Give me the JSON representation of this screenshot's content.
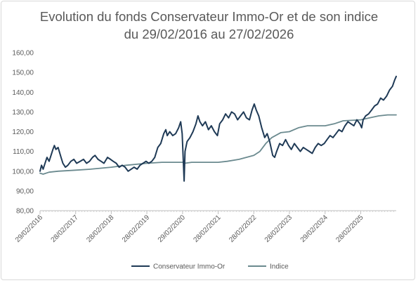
{
  "chart_data": {
    "type": "line",
    "title_line1": "Evolution du fonds Conservateur Immo-Or et de son indice",
    "title_line2": "du 29/02/2016 au 27/02/2026",
    "xlabel": "",
    "ylabel": "",
    "ylim": [
      80,
      160
    ],
    "y_ticks": [
      "80,00",
      "90,00",
      "100,00",
      "110,00",
      "120,00",
      "130,00",
      "140,00",
      "150,00",
      "160,00"
    ],
    "x_ticks": [
      {
        "date": "2016-02-29",
        "label": "29/02/2016"
      },
      {
        "date": "2017-02-28",
        "label": "28/02/2017"
      },
      {
        "date": "2018-02-28",
        "label": "28/02/2018"
      },
      {
        "date": "2019-02-28",
        "label": "28/02/2019"
      },
      {
        "date": "2020-02-29",
        "label": "29/02/2020"
      },
      {
        "date": "2021-02-28",
        "label": "28/02/2021"
      },
      {
        "date": "2022-02-28",
        "label": "28/02/2022"
      },
      {
        "date": "2023-02-28",
        "label": "28/02/2023"
      },
      {
        "date": "2024-02-29",
        "label": "29/02/2024"
      },
      {
        "date": "2025-02-28",
        "label": "28/02/2025"
      }
    ],
    "x_range": [
      "2016-02-29",
      "2026-02-27"
    ],
    "grid": false,
    "legend_position": "bottom",
    "series": [
      {
        "name": "Conservateur Immo-Or",
        "color": "#1f3a56",
        "points": [
          [
            "2016-02-29",
            100
          ],
          [
            "2016-03-15",
            103
          ],
          [
            "2016-04-01",
            101
          ],
          [
            "2016-04-20",
            104
          ],
          [
            "2016-05-10",
            107
          ],
          [
            "2016-06-01",
            105
          ],
          [
            "2016-06-20",
            108
          ],
          [
            "2016-07-10",
            111
          ],
          [
            "2016-07-25",
            113
          ],
          [
            "2016-08-10",
            111
          ],
          [
            "2016-09-01",
            112
          ],
          [
            "2016-10-01",
            107
          ],
          [
            "2016-10-20",
            104
          ],
          [
            "2016-11-15",
            102
          ],
          [
            "2016-12-10",
            103
          ],
          [
            "2017-01-10",
            105
          ],
          [
            "2017-02-10",
            106
          ],
          [
            "2017-03-10",
            104
          ],
          [
            "2017-04-15",
            105
          ],
          [
            "2017-05-20",
            106
          ],
          [
            "2017-06-20",
            104
          ],
          [
            "2017-07-20",
            105
          ],
          [
            "2017-08-20",
            107
          ],
          [
            "2017-09-15",
            108
          ],
          [
            "2017-10-15",
            106
          ],
          [
            "2017-11-15",
            105
          ],
          [
            "2017-12-15",
            104
          ],
          [
            "2018-01-20",
            107
          ],
          [
            "2018-02-20",
            106
          ],
          [
            "2018-03-20",
            105
          ],
          [
            "2018-04-20",
            104
          ],
          [
            "2018-05-20",
            102
          ],
          [
            "2018-06-20",
            103
          ],
          [
            "2018-07-20",
            102
          ],
          [
            "2018-08-20",
            100
          ],
          [
            "2018-09-20",
            101
          ],
          [
            "2018-10-20",
            102
          ],
          [
            "2018-11-20",
            101
          ],
          [
            "2018-12-20",
            103
          ],
          [
            "2019-01-20",
            104
          ],
          [
            "2019-02-20",
            105
          ],
          [
            "2019-03-20",
            104
          ],
          [
            "2019-04-20",
            105
          ],
          [
            "2019-05-20",
            107
          ],
          [
            "2019-06-20",
            112
          ],
          [
            "2019-07-20",
            114
          ],
          [
            "2019-08-20",
            119
          ],
          [
            "2019-09-10",
            121
          ],
          [
            "2019-09-25",
            118
          ],
          [
            "2019-10-20",
            120
          ],
          [
            "2019-11-20",
            118
          ],
          [
            "2019-12-20",
            119
          ],
          [
            "2020-01-20",
            122
          ],
          [
            "2020-02-10",
            125
          ],
          [
            "2020-02-25",
            119
          ],
          [
            "2020-03-05",
            108
          ],
          [
            "2020-03-16",
            95
          ],
          [
            "2020-03-25",
            110
          ],
          [
            "2020-04-15",
            115
          ],
          [
            "2020-05-15",
            117
          ],
          [
            "2020-06-15",
            120
          ],
          [
            "2020-07-15",
            124
          ],
          [
            "2020-08-05",
            128
          ],
          [
            "2020-08-25",
            125
          ],
          [
            "2020-09-20",
            123
          ],
          [
            "2020-10-20",
            125
          ],
          [
            "2020-11-20",
            121
          ],
          [
            "2020-12-20",
            123
          ],
          [
            "2021-01-20",
            120
          ],
          [
            "2021-02-20",
            118
          ],
          [
            "2021-03-15",
            124
          ],
          [
            "2021-04-15",
            126
          ],
          [
            "2021-05-15",
            129
          ],
          [
            "2021-06-15",
            127
          ],
          [
            "2021-07-15",
            130
          ],
          [
            "2021-08-15",
            129
          ],
          [
            "2021-09-15",
            126
          ],
          [
            "2021-10-15",
            128
          ],
          [
            "2021-11-15",
            130
          ],
          [
            "2021-12-15",
            127
          ],
          [
            "2022-01-15",
            126
          ],
          [
            "2022-02-10",
            131
          ],
          [
            "2022-03-05",
            134
          ],
          [
            "2022-03-25",
            131
          ],
          [
            "2022-04-20",
            128
          ],
          [
            "2022-05-20",
            122
          ],
          [
            "2022-06-20",
            117
          ],
          [
            "2022-07-15",
            119
          ],
          [
            "2022-08-10",
            115
          ],
          [
            "2022-09-10",
            108
          ],
          [
            "2022-09-30",
            107
          ],
          [
            "2022-10-20",
            110
          ],
          [
            "2022-11-20",
            114
          ],
          [
            "2022-12-20",
            113
          ],
          [
            "2023-01-20",
            116
          ],
          [
            "2023-02-20",
            113
          ],
          [
            "2023-03-20",
            111
          ],
          [
            "2023-04-20",
            114
          ],
          [
            "2023-05-20",
            112
          ],
          [
            "2023-06-20",
            110
          ],
          [
            "2023-07-20",
            112
          ],
          [
            "2023-08-20",
            111
          ],
          [
            "2023-09-20",
            110
          ],
          [
            "2023-10-20",
            109
          ],
          [
            "2023-11-20",
            112
          ],
          [
            "2023-12-20",
            114
          ],
          [
            "2024-01-20",
            113
          ],
          [
            "2024-02-20",
            114
          ],
          [
            "2024-03-20",
            116
          ],
          [
            "2024-04-20",
            118
          ],
          [
            "2024-05-20",
            117
          ],
          [
            "2024-06-20",
            119
          ],
          [
            "2024-07-20",
            121
          ],
          [
            "2024-08-20",
            120
          ],
          [
            "2024-09-20",
            123
          ],
          [
            "2024-10-20",
            125
          ],
          [
            "2024-11-20",
            124
          ],
          [
            "2024-12-20",
            123
          ],
          [
            "2025-01-20",
            126
          ],
          [
            "2025-02-20",
            124
          ],
          [
            "2025-03-10",
            122
          ],
          [
            "2025-03-25",
            126
          ],
          [
            "2025-04-20",
            128
          ],
          [
            "2025-05-20",
            129
          ],
          [
            "2025-06-20",
            131
          ],
          [
            "2025-07-20",
            133
          ],
          [
            "2025-08-20",
            134
          ],
          [
            "2025-09-20",
            137
          ],
          [
            "2025-10-20",
            136
          ],
          [
            "2025-11-20",
            138
          ],
          [
            "2025-12-20",
            141
          ],
          [
            "2026-01-20",
            143
          ],
          [
            "2026-02-10",
            146
          ],
          [
            "2026-02-27",
            148
          ]
        ]
      },
      {
        "name": "Indice",
        "color": "#6b8a8f",
        "points": [
          [
            "2016-02-29",
            99
          ],
          [
            "2016-04-01",
            98.5
          ],
          [
            "2016-06-01",
            99.5
          ],
          [
            "2016-09-01",
            100
          ],
          [
            "2017-02-28",
            100.5
          ],
          [
            "2017-08-01",
            101
          ],
          [
            "2018-02-28",
            102
          ],
          [
            "2018-08-01",
            103
          ],
          [
            "2019-02-28",
            104
          ],
          [
            "2019-08-01",
            104.5
          ],
          [
            "2020-02-29",
            104.5
          ],
          [
            "2020-03-20",
            104
          ],
          [
            "2020-06-01",
            104.5
          ],
          [
            "2021-02-28",
            104.5
          ],
          [
            "2021-06-01",
            105
          ],
          [
            "2021-10-01",
            106
          ],
          [
            "2022-02-28",
            108
          ],
          [
            "2022-05-01",
            110
          ],
          [
            "2022-07-01",
            114
          ],
          [
            "2022-09-01",
            117
          ],
          [
            "2022-12-01",
            119.5
          ],
          [
            "2023-02-28",
            120
          ],
          [
            "2023-06-01",
            122
          ],
          [
            "2023-09-01",
            123
          ],
          [
            "2024-02-29",
            123
          ],
          [
            "2024-06-01",
            124
          ],
          [
            "2024-09-01",
            125.5
          ],
          [
            "2025-02-28",
            126
          ],
          [
            "2025-06-01",
            127
          ],
          [
            "2025-09-01",
            128
          ],
          [
            "2025-12-01",
            128.5
          ],
          [
            "2026-02-27",
            128.5
          ]
        ]
      }
    ]
  }
}
